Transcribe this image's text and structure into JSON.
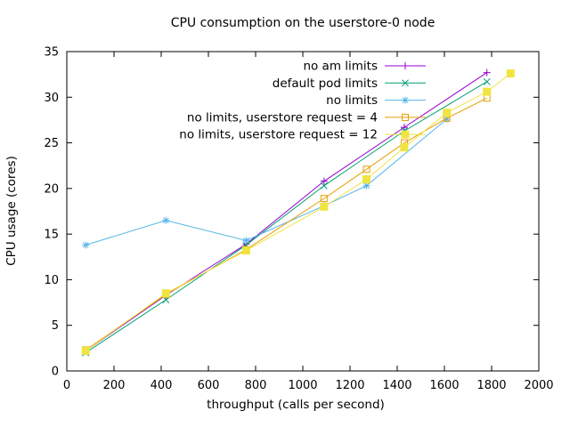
{
  "chart_data": {
    "type": "line",
    "title": "CPU consumption on the userstore-0 node",
    "xlabel": "throughput (calls per second)",
    "ylabel": "CPU usage (cores)",
    "xlim": [
      0,
      2000
    ],
    "ylim": [
      0,
      35
    ],
    "xticks": [
      0,
      200,
      400,
      600,
      800,
      1000,
      1200,
      1400,
      1600,
      1800,
      2000
    ],
    "yticks": [
      0,
      5,
      10,
      15,
      20,
      25,
      30,
      35
    ],
    "grid": false,
    "legend_position": "top-right-inside",
    "background_color": "#ffffff",
    "axis_color": "#000000",
    "series": [
      {
        "name": "no am limits",
        "color": "#9400d3",
        "marker": "plus",
        "points": [
          [
            80,
            2.2
          ],
          [
            420,
            8.3
          ],
          [
            760,
            13.9
          ],
          [
            1090,
            20.8
          ],
          [
            1430,
            26.7
          ],
          [
            1780,
            32.7
          ]
        ]
      },
      {
        "name": "default pod limits",
        "color": "#009e73",
        "marker": "cross",
        "points": [
          [
            80,
            2.0
          ],
          [
            420,
            7.8
          ],
          [
            760,
            13.8
          ],
          [
            1090,
            20.3
          ],
          [
            1430,
            26.3
          ],
          [
            1780,
            31.7
          ]
        ]
      },
      {
        "name": "no limits",
        "color": "#56b4e9",
        "marker": "asterisk",
        "points": [
          [
            80,
            13.8
          ],
          [
            420,
            16.5
          ],
          [
            760,
            14.3
          ],
          [
            1090,
            18.1
          ],
          [
            1270,
            20.3
          ],
          [
            1610,
            27.6
          ]
        ]
      },
      {
        "name": "no limits, userstore request = 4",
        "color": "#e69f00",
        "marker": "open-square",
        "points": [
          [
            80,
            2.3
          ],
          [
            420,
            8.4
          ],
          [
            760,
            13.3
          ],
          [
            1090,
            18.9
          ],
          [
            1270,
            22.1
          ],
          [
            1430,
            25.0
          ],
          [
            1610,
            27.7
          ],
          [
            1780,
            29.9
          ]
        ]
      },
      {
        "name": "no limits, userstore request = 12",
        "color": "#f0e442",
        "marker": "filled-square",
        "points": [
          [
            80,
            2.2
          ],
          [
            420,
            8.5
          ],
          [
            760,
            13.2
          ],
          [
            1090,
            18.0
          ],
          [
            1270,
            21.0
          ],
          [
            1430,
            24.5
          ],
          [
            1610,
            28.3
          ],
          [
            1780,
            30.6
          ],
          [
            1880,
            32.6
          ]
        ]
      }
    ]
  }
}
